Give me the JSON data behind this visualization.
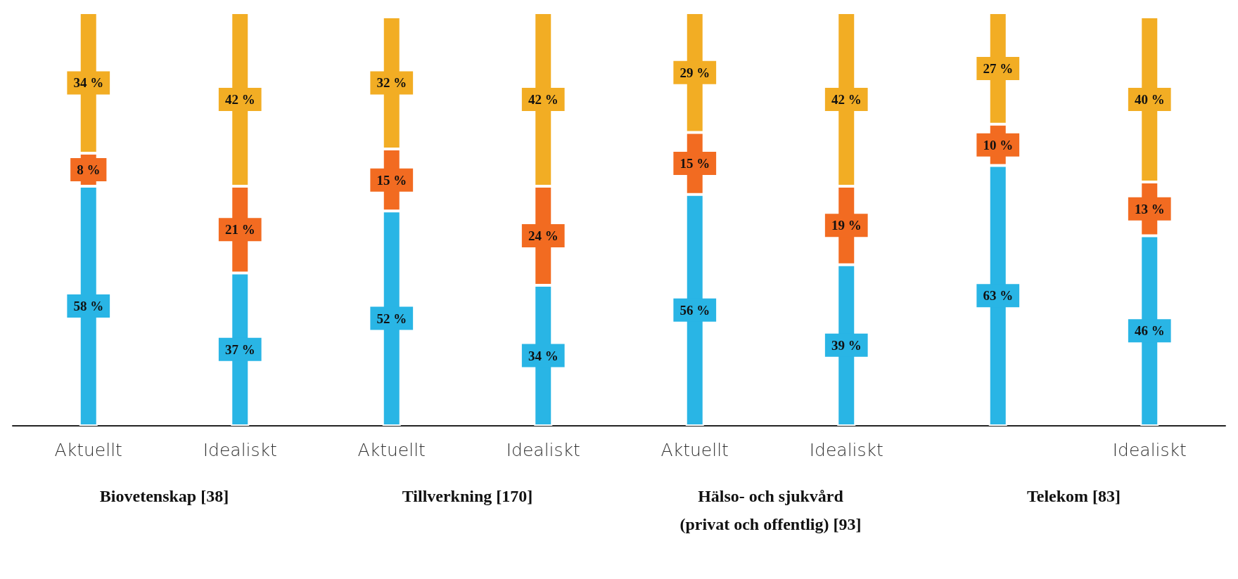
{
  "chart_data": {
    "type": "bar",
    "stacked": true,
    "tick_labels": "x",
    "categories": [
      "Aktuellt",
      "Idealiskt",
      "Aktuellt",
      "Idealiskt",
      "Aktuellt",
      "Idealiskt",
      null,
      "Idealiskt"
    ],
    "series": [
      {
        "color": "#29b5e5",
        "values": [
          58,
          37,
          52,
          34,
          56,
          39,
          63,
          46
        ],
        "value_labels": [
          "58 %",
          "37 %",
          "52 %",
          "34 %",
          "56 %",
          "39 %",
          "63 %",
          "46 %"
        ]
      },
      {
        "color": "#f26b21",
        "values": [
          8,
          21,
          15,
          24,
          15,
          19,
          10,
          13
        ],
        "value_labels": [
          "8 %",
          "21 %",
          "15 %",
          "24 %",
          "15 %",
          "19 %",
          "10 %",
          "13 %"
        ]
      },
      {
        "color": "#f2ad24",
        "values": [
          34,
          42,
          32,
          42,
          29,
          42,
          27,
          40
        ],
        "value_labels": [
          "34 %",
          "42 %",
          "32 %",
          "42 %",
          "29 %",
          "42 %",
          "27 %",
          "40 %"
        ]
      }
    ],
    "annotations": [
      "Biovetenskap [38]",
      "Tillverkning [170]",
      "Hälso- och sjukvård\n(privat och offentlig) [93]",
      "Telekom [83]"
    ]
  }
}
